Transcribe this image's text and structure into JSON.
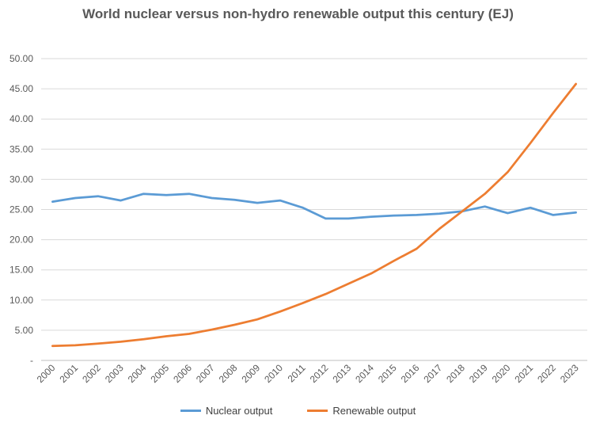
{
  "chart_data": {
    "type": "line",
    "title": "World nuclear versus non-hydro renewable output this century (EJ)",
    "xlabel": "",
    "ylabel": "",
    "categories": [
      "2000",
      "2001",
      "2002",
      "2003",
      "2004",
      "2005",
      "2006",
      "2007",
      "2008",
      "2009",
      "2010",
      "2011",
      "2012",
      "2013",
      "2014",
      "2015",
      "2016",
      "2017",
      "2018",
      "2019",
      "2020",
      "2021",
      "2022",
      "2023"
    ],
    "y_tick_labels": [
      "-",
      "5.00",
      "10.00",
      "15.00",
      "20.00",
      "25.00",
      "30.00",
      "35.00",
      "40.00",
      "45.00",
      "50.00"
    ],
    "ylim": [
      0,
      50
    ],
    "grid": true,
    "legend_position": "bottom",
    "series": [
      {
        "name": "Nuclear output",
        "color": "#5B9BD5",
        "values": [
          26.3,
          26.9,
          27.2,
          26.5,
          27.6,
          27.4,
          27.6,
          26.9,
          26.6,
          26.1,
          26.5,
          25.3,
          23.5,
          23.5,
          23.8,
          24.0,
          24.1,
          24.3,
          24.7,
          25.5,
          24.4,
          25.3,
          24.1,
          24.5
        ]
      },
      {
        "name": "Renewable output",
        "color": "#ED7D31",
        "values": [
          2.4,
          2.5,
          2.8,
          3.1,
          3.5,
          4.0,
          4.4,
          5.1,
          5.9,
          6.8,
          8.1,
          9.5,
          11.0,
          12.7,
          14.4,
          16.5,
          18.5,
          21.8,
          24.7,
          27.6,
          31.2,
          36.0,
          41.0,
          45.8
        ]
      }
    ]
  }
}
